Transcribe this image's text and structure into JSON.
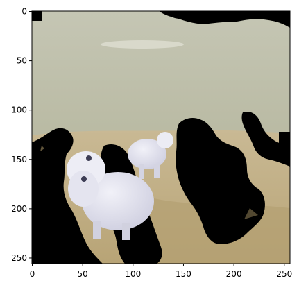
{
  "image": {
    "description_tag": "masked-photo-lambs-on-field",
    "colors": {
      "sky_top": "#c9cab6",
      "sky_mid": "#b8b8a0",
      "sky_band": "#cfd0c0",
      "ground_light": "#c6b48a",
      "ground_dark": "#a89468",
      "mask": "#000000",
      "lamb": "#e8e8f2",
      "lamb_shadow": "#c9c9d8"
    }
  },
  "axes": {
    "x_ticks": [
      "0",
      "50",
      "100",
      "150",
      "200",
      "250"
    ],
    "y_ticks": [
      "0",
      "50",
      "100",
      "150",
      "200",
      "250"
    ],
    "xlim": [
      0,
      256
    ],
    "ylim": [
      256,
      0
    ]
  }
}
